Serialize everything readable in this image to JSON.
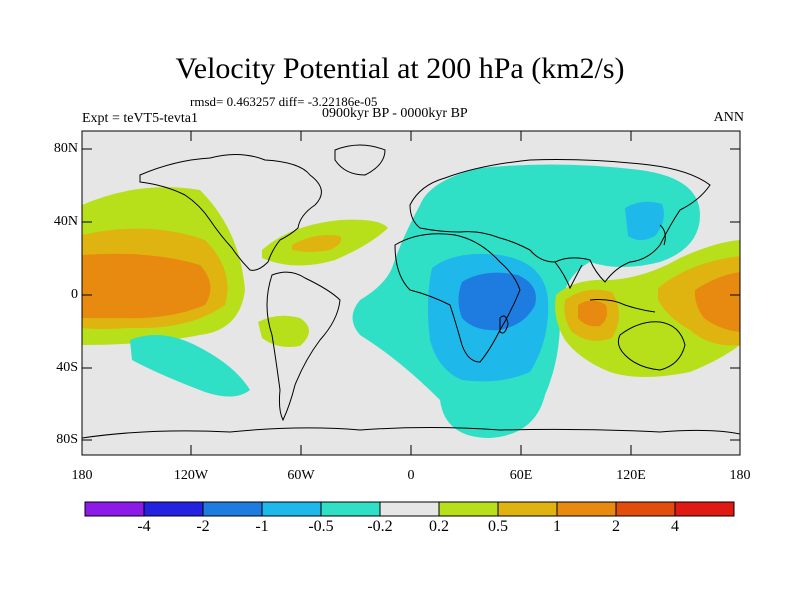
{
  "title": "Velocity Potential at 200 hPa (km2/s)",
  "stats": "rmsd= 0.463257  diff= -3.22186e-05",
  "experiment": "Expt = teVT5-tevta1",
  "period": "0900kyr BP - 0000kyr BP",
  "season": "ANN",
  "lat_labels": [
    "80N",
    "40N",
    "0",
    "40S",
    "80S"
  ],
  "lon_labels": [
    "180",
    "120W",
    "60W",
    "0",
    "60E",
    "120E",
    "180"
  ],
  "colorbar": {
    "colors": [
      "#8c1ae8",
      "#2222e0",
      "#1e7be0",
      "#1fb8ea",
      "#2fe0c6",
      "#e6e6e6",
      "#b8e01a",
      "#e0b410",
      "#e88a10",
      "#e24d0c",
      "#e01a12"
    ],
    "labels": [
      "-4",
      "-2",
      "-1",
      "-0.5",
      "-0.2",
      "0.2",
      "0.5",
      "1",
      "2",
      "4"
    ]
  },
  "legend_levels": {
    "neg_strong": "#1e7be0",
    "neg_mid": "#1fb8ea",
    "neg_weak": "#2fe0c6",
    "neutral": "#e6e6e6",
    "pos_weak": "#b8e01a",
    "pos_mid": "#e0b410",
    "pos_strong": "#e88a10"
  }
}
